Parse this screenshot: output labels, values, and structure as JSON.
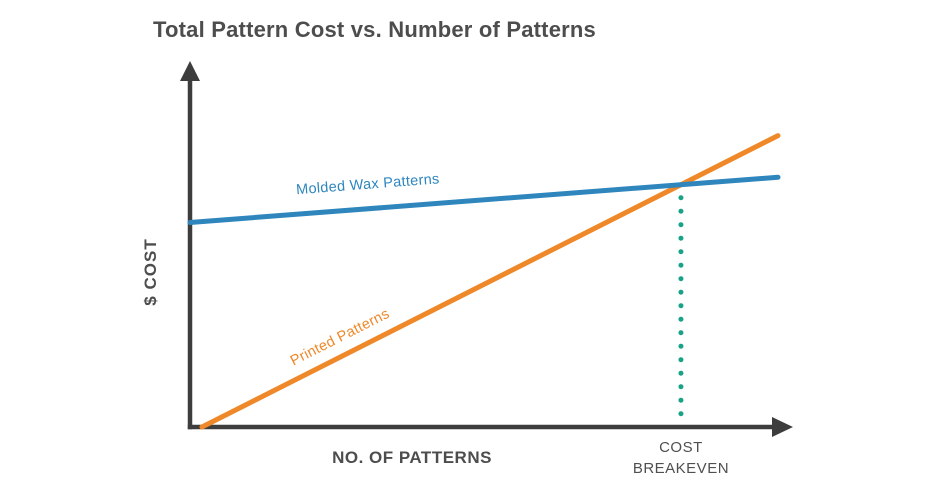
{
  "title": "Total Pattern Cost vs. Number of Patterns",
  "colors": {
    "molded_wax": "#2e86bd",
    "printed": "#ef8829",
    "breakeven": "#18a287",
    "axis": "#3d3d3d",
    "heading": "#4d4d4d",
    "annotation_text": "#4f4f4f",
    "background": "#ffffff"
  },
  "chart_data": {
    "type": "line",
    "title": "Total Pattern Cost vs. Number of Patterns",
    "xlabel": "NO. OF PATTERNS",
    "ylabel": "$ COST",
    "x_range": [
      0,
      100
    ],
    "y_range": [
      0,
      100
    ],
    "grid": false,
    "ticks": false,
    "legend": "inline labels on lines",
    "series": [
      {
        "name": "Molded Wax Patterns",
        "color": "#2e86bd",
        "points": [
          [
            0,
            56.5
          ],
          [
            98,
            69
          ]
        ]
      },
      {
        "name": "Printed Patterns",
        "color": "#ef8829",
        "points": [
          [
            2,
            0
          ],
          [
            98,
            80.5
          ]
        ]
      }
    ],
    "annotation": {
      "type": "vertical-dotted-line-at-intersection",
      "label": [
        "COST",
        "BREAKEVEN"
      ],
      "color": "#18a287"
    }
  }
}
